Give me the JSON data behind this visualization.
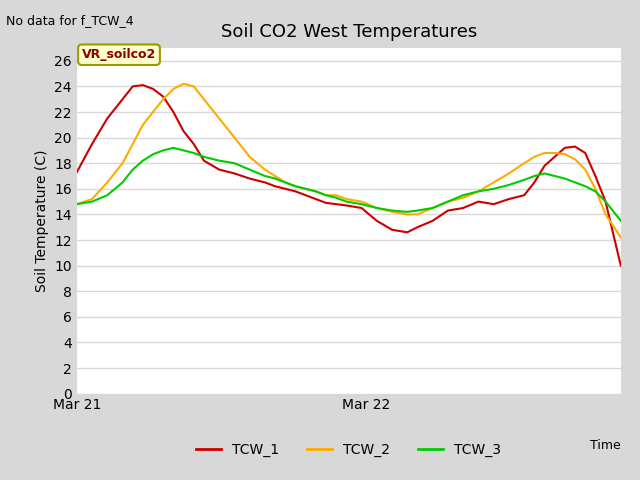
{
  "title": "Soil CO2 West Temperatures",
  "no_data_text": "No data for f_TCW_4",
  "ylabel": "Soil Temperature (C)",
  "ylim": [
    0,
    27
  ],
  "yticks": [
    0,
    2,
    4,
    6,
    8,
    10,
    12,
    14,
    16,
    18,
    20,
    22,
    24,
    26
  ],
  "figure_bg_color": "#d8d8d8",
  "axes_bg_color": "#ffffff",
  "grid_color": "#d8d8d8",
  "annotation_text": "VR_soilco2",
  "series": {
    "TCW_1": {
      "color": "#cc0000",
      "x": [
        0,
        3,
        6,
        9,
        11,
        13,
        15,
        17,
        19,
        21,
        23,
        25,
        28,
        31,
        34,
        37,
        39,
        41,
        43,
        45,
        47,
        49,
        51,
        53,
        56,
        59,
        62,
        65,
        67,
        70,
        73,
        76,
        79,
        82,
        85,
        88,
        90,
        92,
        94,
        96,
        98,
        100,
        102,
        104,
        107
      ],
      "y": [
        17.3,
        19.5,
        21.5,
        23.0,
        24.0,
        24.1,
        23.8,
        23.2,
        22.0,
        20.5,
        19.5,
        18.2,
        17.5,
        17.2,
        16.8,
        16.5,
        16.2,
        16.0,
        15.8,
        15.5,
        15.2,
        14.9,
        14.8,
        14.7,
        14.5,
        13.5,
        12.8,
        12.6,
        13.0,
        13.5,
        14.3,
        14.5,
        15.0,
        14.8,
        15.2,
        15.5,
        16.5,
        17.8,
        18.5,
        19.2,
        19.3,
        18.8,
        17.0,
        15.0,
        10.0
      ]
    },
    "TCW_2": {
      "color": "#ffaa00",
      "x": [
        0,
        3,
        6,
        9,
        11,
        13,
        15,
        17,
        19,
        21,
        23,
        25,
        28,
        31,
        34,
        37,
        39,
        41,
        43,
        45,
        47,
        49,
        51,
        53,
        56,
        59,
        62,
        65,
        67,
        70,
        73,
        76,
        79,
        82,
        85,
        88,
        90,
        92,
        94,
        96,
        98,
        100,
        102,
        104,
        107
      ],
      "y": [
        14.8,
        15.2,
        16.5,
        18.0,
        19.5,
        21.0,
        22.0,
        23.0,
        23.8,
        24.2,
        24.0,
        23.0,
        21.5,
        20.0,
        18.5,
        17.5,
        17.0,
        16.5,
        16.2,
        16.0,
        15.8,
        15.5,
        15.5,
        15.2,
        15.0,
        14.5,
        14.2,
        14.0,
        14.0,
        14.5,
        15.0,
        15.3,
        15.8,
        16.5,
        17.2,
        18.0,
        18.5,
        18.8,
        18.8,
        18.7,
        18.3,
        17.5,
        16.0,
        14.0,
        12.2
      ]
    },
    "TCW_3": {
      "color": "#00cc00",
      "x": [
        0,
        3,
        6,
        9,
        11,
        13,
        15,
        17,
        19,
        21,
        23,
        25,
        28,
        31,
        34,
        37,
        39,
        41,
        43,
        45,
        47,
        49,
        51,
        53,
        56,
        59,
        62,
        65,
        67,
        70,
        73,
        76,
        79,
        82,
        85,
        88,
        90,
        92,
        94,
        96,
        98,
        100,
        102,
        104,
        107
      ],
      "y": [
        14.8,
        15.0,
        15.5,
        16.5,
        17.5,
        18.2,
        18.7,
        19.0,
        19.2,
        19.0,
        18.8,
        18.5,
        18.2,
        18.0,
        17.5,
        17.0,
        16.8,
        16.5,
        16.2,
        16.0,
        15.8,
        15.5,
        15.3,
        15.0,
        14.8,
        14.5,
        14.3,
        14.2,
        14.3,
        14.5,
        15.0,
        15.5,
        15.8,
        16.0,
        16.3,
        16.7,
        17.0,
        17.2,
        17.0,
        16.8,
        16.5,
        16.2,
        15.8,
        15.0,
        13.5
      ]
    }
  },
  "xtick_positions": [
    0,
    57
  ],
  "xtick_labels": [
    "Mar 21",
    "Mar 22"
  ],
  "xlim": [
    0,
    107
  ],
  "legend_entries": [
    "TCW_1",
    "TCW_2",
    "TCW_3"
  ],
  "legend_colors": [
    "#cc0000",
    "#ffaa00",
    "#00cc00"
  ]
}
